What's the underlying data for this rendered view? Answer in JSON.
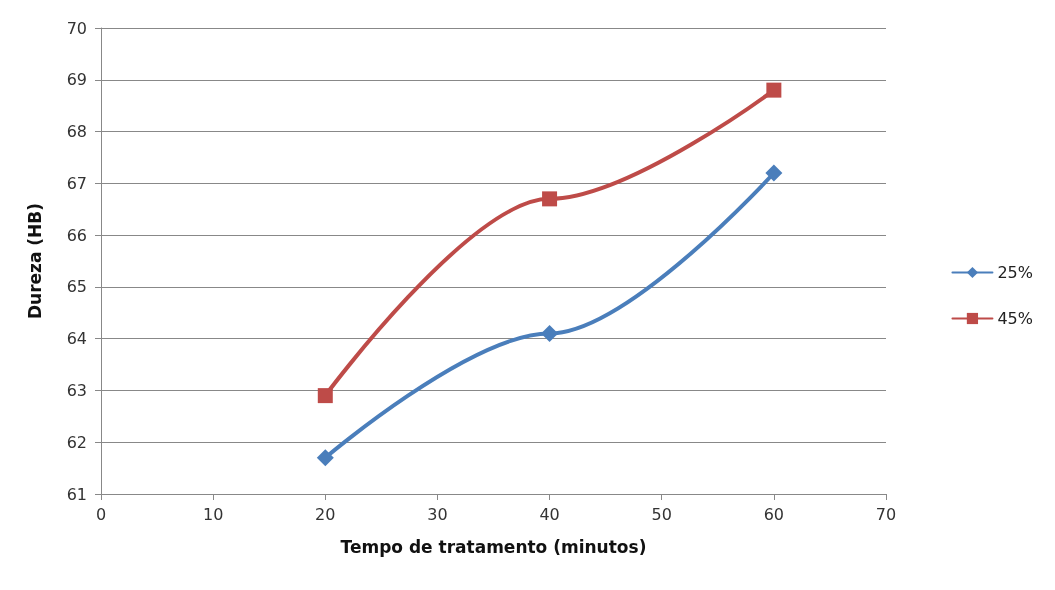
{
  "chart_data": {
    "type": "line",
    "xlabel": "Tempo de tratamento (minutos)",
    "ylabel": "Dureza (HB)",
    "x": [
      20,
      40,
      60
    ],
    "series": [
      {
        "name": "25%",
        "color": "#4a7ebb",
        "marker": "diamond",
        "values": [
          61.7,
          64.1,
          67.2
        ]
      },
      {
        "name": "45%",
        "color": "#be4b48",
        "marker": "square",
        "values": [
          62.9,
          66.7,
          68.8
        ]
      }
    ],
    "xlim": [
      0,
      70
    ],
    "xticks": [
      0,
      10,
      20,
      30,
      40,
      50,
      60,
      70
    ],
    "ylim": [
      61,
      70
    ],
    "yticks": [
      61,
      62,
      63,
      64,
      65,
      66,
      67,
      68,
      69,
      70
    ],
    "grid": "y",
    "legend": "right"
  }
}
